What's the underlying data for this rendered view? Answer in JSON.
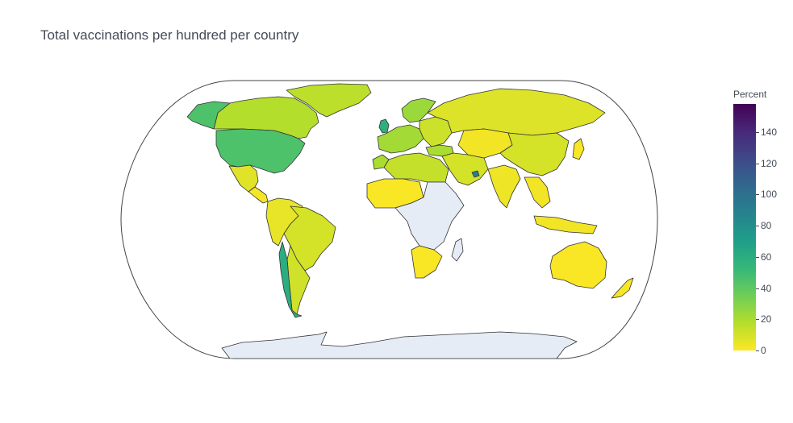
{
  "chart_data": {
    "type": "choropleth",
    "title": "Total vaccinations per hundred per country",
    "projection": "natural earth",
    "colorscale": "Viridis (reversed)",
    "color_range": [
      0,
      158
    ],
    "no_data_color": "#e5ecf6",
    "regions": [
      {
        "name": "United States",
        "value": 45
      },
      {
        "name": "Canada",
        "value": 18
      },
      {
        "name": "Greenland",
        "value": 16
      },
      {
        "name": "Mexico",
        "value": 7
      },
      {
        "name": "Central America",
        "value": 2
      },
      {
        "name": "Brazil",
        "value": 10
      },
      {
        "name": "Argentina",
        "value": 11
      },
      {
        "name": "Chile",
        "value": 60
      },
      {
        "name": "Peru / Colombia / Venezuela",
        "value": 5
      },
      {
        "name": "United Kingdom",
        "value": 58
      },
      {
        "name": "Western Europe",
        "value": 22
      },
      {
        "name": "Scandinavia",
        "value": 24
      },
      {
        "name": "Eastern Europe",
        "value": 12
      },
      {
        "name": "Russia",
        "value": 8
      },
      {
        "name": "Turkey",
        "value": 20
      },
      {
        "name": "Middle East",
        "value": 10
      },
      {
        "name": "United Arab Emirates",
        "value": 90
      },
      {
        "name": "China",
        "value": 10
      },
      {
        "name": "India",
        "value": 4
      },
      {
        "name": "Central Asia",
        "value": 3
      },
      {
        "name": "Southeast Asia",
        "value": 3
      },
      {
        "name": "Indonesia",
        "value": 3
      },
      {
        "name": "Japan",
        "value": 1
      },
      {
        "name": "Australia",
        "value": 1
      },
      {
        "name": "New Zealand",
        "value": 2
      },
      {
        "name": "North Africa",
        "value": 14
      },
      {
        "name": "Morocco",
        "value": 20
      },
      {
        "name": "Sahel / West Africa",
        "value": 1
      },
      {
        "name": "South Africa",
        "value": 1
      },
      {
        "name": "Antarctica",
        "value": null
      }
    ]
  },
  "colorbar": {
    "title": "Percent",
    "ticks": [
      0,
      20,
      40,
      60,
      80,
      100,
      120,
      140
    ],
    "stops": [
      "#fde725",
      "#b5de2b",
      "#6ece58",
      "#35b779",
      "#1f9e89",
      "#26828e",
      "#31688e",
      "#3e4989",
      "#482878",
      "#440154"
    ]
  }
}
